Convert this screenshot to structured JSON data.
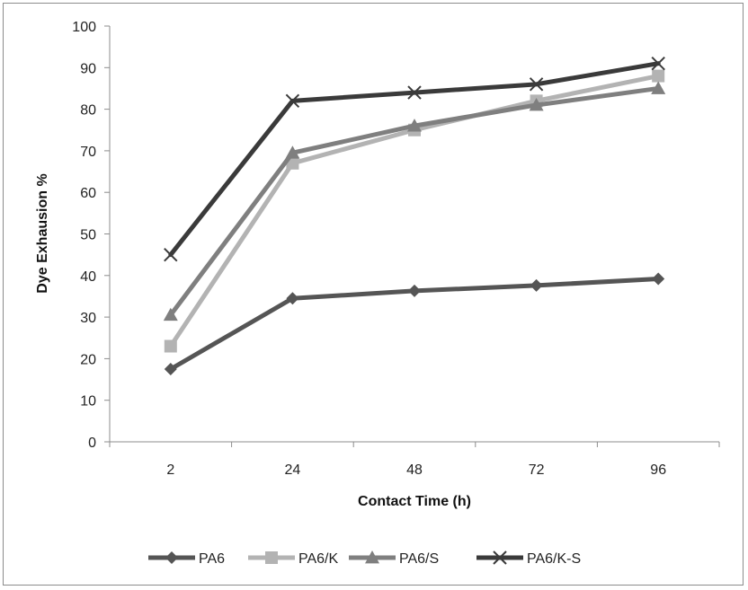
{
  "chart_data": {
    "type": "line",
    "title": "",
    "xlabel": "Contact Time (h)",
    "ylabel": "Dye Exhausion %",
    "categories": [
      "2",
      "24",
      "48",
      "72",
      "96"
    ],
    "ylim": [
      0,
      100
    ],
    "yticks": [
      0,
      10,
      20,
      30,
      40,
      50,
      60,
      70,
      80,
      90,
      100
    ],
    "grid": false,
    "legend_position": "bottom",
    "series": [
      {
        "name": "PA6",
        "values": [
          17.5,
          34.5,
          36.3,
          37.6,
          39.2
        ],
        "color": "#555555",
        "marker": "diamond"
      },
      {
        "name": "PA6/K",
        "values": [
          23,
          67,
          75,
          82,
          88
        ],
        "color": "#b3b3b3",
        "marker": "square"
      },
      {
        "name": "PA6/S",
        "values": [
          30.5,
          69.5,
          76,
          81,
          85
        ],
        "color": "#7f7f7f",
        "marker": "triangle"
      },
      {
        "name": "PA6/K-S",
        "values": [
          45,
          82,
          84,
          86,
          91
        ],
        "color": "#3a3a3a",
        "marker": "x"
      }
    ]
  }
}
